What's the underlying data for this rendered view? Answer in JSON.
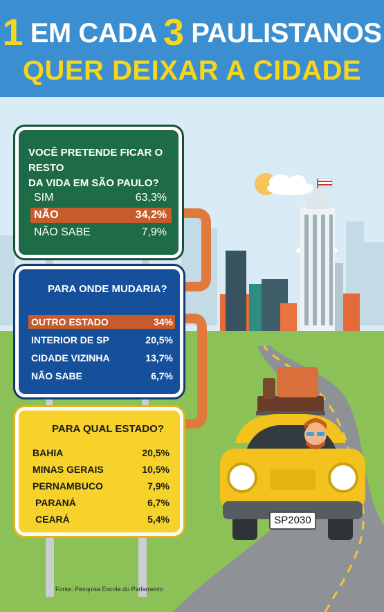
{
  "header": {
    "line1_num1": "1",
    "line1_text1": "EM CADA",
    "line1_num2": "3",
    "line1_text2": "PAULISTANOS",
    "line2": "QUER DEIXAR A CIDADE"
  },
  "sign1": {
    "question": "VOCÊ PRETENDE FICAR  O RESTO DA VIDA EM SÃO PAULO?",
    "question_line1": "VOCÊ PRETENDE FICAR  O RESTO",
    "question_line2": "DA VIDA EM SÃO PAULO?",
    "rows": [
      {
        "label": "SIM",
        "value": "63,3%"
      },
      {
        "label": "NÃO",
        "value": "34,2%"
      },
      {
        "label": "NÃO SABE",
        "value": "7,9%"
      }
    ]
  },
  "sign2": {
    "question": "PARA ONDE MUDARIA?",
    "rows": [
      {
        "label": "OUTRO ESTADO",
        "value": "34%"
      },
      {
        "label": "INTERIOR DE SP",
        "value": "20,5%"
      },
      {
        "label": "CIDADE VIZINHA",
        "value": "13,7%"
      },
      {
        "label": "NÃO SABE",
        "value": "6,7%"
      }
    ]
  },
  "sign3": {
    "question": "PARA QUAL ESTADO?",
    "rows": [
      {
        "label": "BAHIA",
        "value": "20,5%"
      },
      {
        "label": "MINAS GERAIS",
        "value": "10,5%"
      },
      {
        "label": "PERNAMBUCO",
        "value": "7,9%"
      },
      {
        "label": "PARANÁ",
        "value": "6,7%"
      },
      {
        "label": "CEARÁ",
        "value": "5,4%"
      }
    ]
  },
  "car": {
    "plate": "SP2030"
  },
  "footer": {
    "source": "Fonte: Pesquisa Escola do Parlamento"
  },
  "colors": {
    "sky": "#d9ecf6",
    "header": "#3b8fd0",
    "yellow": "#f7d51d",
    "grass": "#8cc157",
    "road": "#8e9296",
    "sign_green": "#1e6b48",
    "sign_blue": "#17509a",
    "sign_yellow": "#f6d22b",
    "highlight": "#c75b2c",
    "arrow": "#e07a3c"
  }
}
